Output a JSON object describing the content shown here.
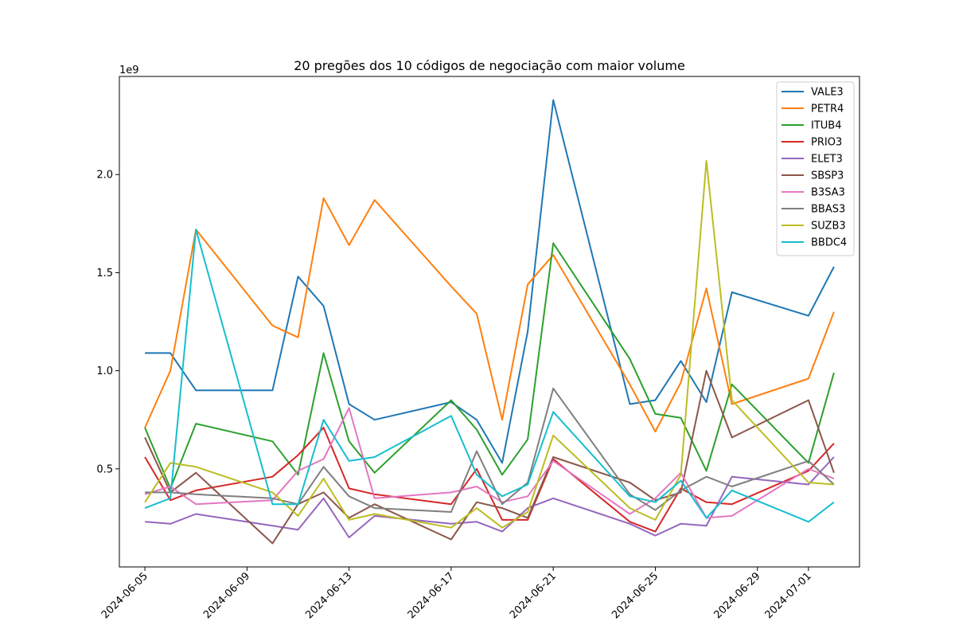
{
  "chart_data": {
    "type": "line",
    "title": "20 pregões dos 10 códigos de negociação com maior volume",
    "offset_label": "1e9",
    "scale": 1000000000,
    "x": [
      "2024-06-05",
      "2024-06-06",
      "2024-06-07",
      "2024-06-10",
      "2024-06-11",
      "2024-06-12",
      "2024-06-13",
      "2024-06-14",
      "2024-06-17",
      "2024-06-18",
      "2024-06-19",
      "2024-06-20",
      "2024-06-21",
      "2024-06-24",
      "2024-06-25",
      "2024-06-26",
      "2024-06-27",
      "2024-06-28",
      "2024-07-01",
      "2024-07-02"
    ],
    "x_ticks": [
      "2024-06-05",
      "2024-06-09",
      "2024-06-13",
      "2024-06-17",
      "2024-06-21",
      "2024-06-25",
      "2024-06-29",
      "2024-07-01"
    ],
    "x_range": [
      "2024-06-04",
      "2024-07-03"
    ],
    "y_ticks": [
      0.5,
      1.0,
      1.5,
      2.0
    ],
    "y_tick_labels": [
      "0.5",
      "1.0",
      "1.5",
      "2.0"
    ],
    "ylim": [
      0.0,
      2.5
    ],
    "grid": false,
    "legend_position": "top-right",
    "series": [
      {
        "name": "VALE3",
        "color": "#1f77b4",
        "values": [
          1.09,
          1.09,
          0.9,
          0.9,
          1.48,
          1.33,
          0.83,
          0.75,
          0.84,
          0.75,
          0.53,
          1.2,
          2.38,
          0.83,
          0.85,
          1.05,
          0.84,
          1.4,
          1.28,
          1.53
        ]
      },
      {
        "name": "PETR4",
        "color": "#ff7f0e",
        "values": [
          0.71,
          1.0,
          1.72,
          1.23,
          1.17,
          1.88,
          1.64,
          1.87,
          1.43,
          1.29,
          0.75,
          1.44,
          1.59,
          0.93,
          0.69,
          0.94,
          1.42,
          0.83,
          0.96,
          1.3
        ]
      },
      {
        "name": "ITUB4",
        "color": "#2ca02c",
        "values": [
          0.71,
          0.4,
          0.73,
          0.64,
          0.47,
          1.09,
          0.64,
          0.48,
          0.85,
          0.7,
          0.47,
          0.65,
          1.65,
          1.06,
          0.78,
          0.76,
          0.49,
          0.93,
          0.53,
          0.99
        ]
      },
      {
        "name": "PRIO3",
        "color": "#d62728",
        "values": [
          0.56,
          0.34,
          0.39,
          0.46,
          0.57,
          0.71,
          0.4,
          0.37,
          0.32,
          0.5,
          0.24,
          0.24,
          0.55,
          0.23,
          0.18,
          0.4,
          0.33,
          0.32,
          0.49,
          0.63
        ]
      },
      {
        "name": "ELET3",
        "color": "#9467bd",
        "values": [
          0.23,
          0.22,
          0.27,
          0.21,
          0.19,
          0.35,
          0.15,
          0.26,
          0.22,
          0.23,
          0.18,
          0.3,
          0.35,
          0.22,
          0.16,
          0.22,
          0.21,
          0.46,
          0.42,
          0.56
        ]
      },
      {
        "name": "SBSP3",
        "color": "#8c564b",
        "values": [
          0.66,
          0.38,
          0.48,
          0.12,
          0.32,
          0.38,
          0.25,
          0.32,
          0.14,
          0.33,
          0.3,
          0.25,
          0.56,
          0.43,
          0.34,
          0.38,
          1.0,
          0.66,
          0.85,
          0.48
        ]
      },
      {
        "name": "B3SA3",
        "color": "#e377c2",
        "values": [
          0.37,
          0.41,
          0.32,
          0.34,
          0.49,
          0.55,
          0.81,
          0.35,
          0.38,
          0.41,
          0.33,
          0.36,
          0.54,
          0.27,
          0.35,
          0.48,
          0.25,
          0.26,
          0.5,
          0.45
        ]
      },
      {
        "name": "BBAS3",
        "color": "#7f7f7f",
        "values": [
          0.38,
          0.38,
          0.37,
          0.35,
          0.32,
          0.51,
          0.36,
          0.3,
          0.28,
          0.59,
          0.32,
          0.43,
          0.91,
          0.37,
          0.29,
          0.39,
          0.46,
          0.41,
          0.54,
          0.42
        ]
      },
      {
        "name": "SUZB3",
        "color": "#bcbd22",
        "values": [
          0.33,
          0.53,
          0.51,
          0.38,
          0.26,
          0.45,
          0.24,
          0.27,
          0.2,
          0.3,
          0.2,
          0.28,
          0.67,
          0.3,
          0.24,
          0.47,
          2.07,
          0.85,
          0.43,
          0.42
        ]
      },
      {
        "name": "BBDC4",
        "color": "#17becf",
        "values": [
          0.3,
          0.35,
          1.72,
          0.32,
          0.32,
          0.75,
          0.54,
          0.56,
          0.77,
          0.47,
          0.36,
          0.42,
          0.79,
          0.36,
          0.33,
          0.44,
          0.25,
          0.39,
          0.23,
          0.33
        ]
      }
    ]
  }
}
